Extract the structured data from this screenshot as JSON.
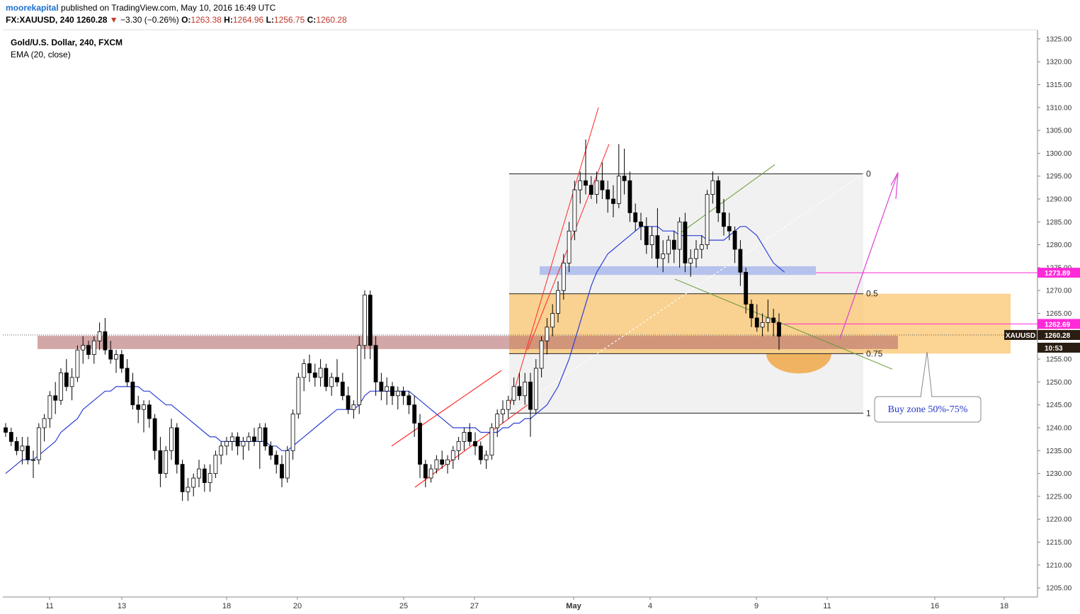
{
  "header": {
    "author": "moorekapital",
    "published": "published on TradingView.com, May 10, 2016 16:49 UTC",
    "symbol": "FX:XAUUSD, 240",
    "last": "1260.28",
    "change": "−3.30 (−0.26%)",
    "o_label": "O:",
    "o": "1263.38",
    "h_label": "H:",
    "h": "1264.96",
    "l_label": "L:",
    "l": "1256.75",
    "c_label": "C:",
    "c": "1260.28"
  },
  "legend": {
    "title": "Gold/U.S. Dollar, 240, FXCM",
    "indicator": "EMA (20, close)"
  },
  "colors": {
    "ema": "#2b3fd6",
    "fib_fill": "#eeeeee",
    "buy_zone": "#fbc56f",
    "resistance": "#b56d6d",
    "blue_zone": "#8ea4ea",
    "channel": "#ff2a2a",
    "wedge": "#6a9a35",
    "arrow": "#e040d8",
    "price_tag_magenta": "#ff29d8",
    "price_tag_dark": "#2a1e12"
  },
  "chart_data": {
    "type": "candlestick",
    "y_range": [
      1203,
      1327
    ],
    "y_ticks": [
      "1205.00",
      "1210.00",
      "1215.00",
      "1220.00",
      "1225.00",
      "1230.00",
      "1235.00",
      "1240.00",
      "1245.00",
      "1250.00",
      "1255.00",
      "1260.00",
      "1265.00",
      "1270.00",
      "1275.00",
      "1280.00",
      "1285.00",
      "1290.00",
      "1295.00",
      "1300.00",
      "1305.00",
      "1310.00",
      "1315.00",
      "1320.00",
      "1325.00"
    ],
    "x_ticks": [
      "11",
      "13",
      "18",
      "20",
      "25",
      "27",
      "May",
      "4",
      "9",
      "11",
      "16",
      "18"
    ],
    "fib_levels": [
      {
        "label": "0",
        "value": 1295.5
      },
      {
        "label": "0.5",
        "value": 1269.3
      },
      {
        "label": "0.75",
        "value": 1256.2
      },
      {
        "label": "1",
        "value": 1243.2
      }
    ],
    "buy_zone": {
      "label": "Buy zone 50%-75%",
      "from": 1256.2,
      "to": 1269.3
    },
    "resistance_zone": {
      "from": 1257.2,
      "to": 1260.1
    },
    "blue_zone": {
      "from": 1273.4,
      "to": 1275.3
    },
    "price_labels": [
      {
        "text": "1273.89",
        "value": 1273.89,
        "style": "magenta"
      },
      {
        "text": "1262.69",
        "value": 1262.69,
        "style": "magenta"
      },
      {
        "text": "1260.28",
        "value": 1260.28,
        "style": "dark",
        "symbol": "XAUUSD"
      },
      {
        "text": "10:53",
        "value": 1257.5,
        "style": "dark"
      }
    ],
    "last_price": 1260.28,
    "candles": [
      [
        1240,
        1241,
        1238,
        1239
      ],
      [
        1239,
        1240,
        1236,
        1237
      ],
      [
        1237,
        1238,
        1234,
        1235
      ],
      [
        1235,
        1238,
        1232,
        1236
      ],
      [
        1236,
        1238,
        1232,
        1233
      ],
      [
        1233,
        1235,
        1229,
        1233
      ],
      [
        1233,
        1241,
        1232,
        1240
      ],
      [
        1240,
        1243,
        1237,
        1242
      ],
      [
        1242,
        1248,
        1240,
        1247
      ],
      [
        1247,
        1250,
        1243,
        1246
      ],
      [
        1246,
        1253,
        1245,
        1252
      ],
      [
        1252,
        1255,
        1248,
        1249
      ],
      [
        1249,
        1253,
        1246,
        1251
      ],
      [
        1251,
        1258,
        1250,
        1257
      ],
      [
        1257,
        1260,
        1254,
        1258
      ],
      [
        1258,
        1259,
        1255,
        1256
      ],
      [
        1256,
        1260,
        1254,
        1259
      ],
      [
        1259,
        1263,
        1257,
        1261
      ],
      [
        1261,
        1264,
        1256,
        1257
      ],
      [
        1257,
        1259,
        1254,
        1255
      ],
      [
        1255,
        1257,
        1252,
        1256
      ],
      [
        1256,
        1257,
        1252,
        1253
      ],
      [
        1253,
        1255,
        1249,
        1250
      ],
      [
        1250,
        1252,
        1244,
        1245
      ],
      [
        1245,
        1247,
        1241,
        1244
      ],
      [
        1244,
        1246,
        1239,
        1245
      ],
      [
        1245,
        1246,
        1240,
        1242
      ],
      [
        1242,
        1243,
        1233,
        1235
      ],
      [
        1235,
        1238,
        1227,
        1230
      ],
      [
        1230,
        1236,
        1229,
        1235
      ],
      [
        1235,
        1242,
        1233,
        1240
      ],
      [
        1240,
        1241,
        1230,
        1232
      ],
      [
        1232,
        1233,
        1224,
        1226
      ],
      [
        1226,
        1229,
        1224,
        1227
      ],
      [
        1227,
        1230,
        1225,
        1229
      ],
      [
        1229,
        1233,
        1227,
        1231
      ],
      [
        1231,
        1232,
        1226,
        1228
      ],
      [
        1228,
        1232,
        1226,
        1230
      ],
      [
        1230,
        1235,
        1229,
        1234
      ],
      [
        1234,
        1237,
        1232,
        1236
      ],
      [
        1236,
        1238,
        1234,
        1237
      ],
      [
        1237,
        1239,
        1235,
        1238
      ],
      [
        1238,
        1239,
        1234,
        1236
      ],
      [
        1236,
        1238,
        1233,
        1237
      ],
      [
        1237,
        1239,
        1235,
        1238
      ],
      [
        1238,
        1240,
        1236,
        1237
      ],
      [
        1237,
        1241,
        1231,
        1240
      ],
      [
        1240,
        1241,
        1235,
        1236
      ],
      [
        1236,
        1237,
        1233,
        1234
      ],
      [
        1234,
        1235,
        1230,
        1232
      ],
      [
        1232,
        1234,
        1227,
        1229
      ],
      [
        1229,
        1236,
        1228,
        1235
      ],
      [
        1235,
        1244,
        1233,
        1243
      ],
      [
        1243,
        1252,
        1242,
        1251
      ],
      [
        1251,
        1255,
        1248,
        1254
      ],
      [
        1254,
        1256,
        1250,
        1252
      ],
      [
        1252,
        1254,
        1249,
        1251
      ],
      [
        1251,
        1255,
        1249,
        1253
      ],
      [
        1253,
        1254,
        1248,
        1249
      ],
      [
        1249,
        1252,
        1247,
        1251
      ],
      [
        1251,
        1255,
        1249,
        1250
      ],
      [
        1250,
        1252,
        1246,
        1247
      ],
      [
        1247,
        1249,
        1243,
        1244
      ],
      [
        1244,
        1246,
        1242,
        1245
      ],
      [
        1245,
        1260,
        1243,
        1258
      ],
      [
        1258,
        1270,
        1255,
        1269
      ],
      [
        1269,
        1270,
        1255,
        1258
      ],
      [
        1258,
        1260,
        1247,
        1250
      ],
      [
        1250,
        1252,
        1246,
        1248
      ],
      [
        1248,
        1251,
        1245,
        1249
      ],
      [
        1249,
        1250,
        1245,
        1247
      ],
      [
        1247,
        1249,
        1244,
        1248
      ],
      [
        1248,
        1249,
        1245,
        1247
      ],
      [
        1247,
        1248,
        1243,
        1245
      ],
      [
        1245,
        1247,
        1238,
        1241
      ],
      [
        1241,
        1243,
        1229,
        1232
      ],
      [
        1232,
        1233,
        1227,
        1229
      ],
      [
        1229,
        1232,
        1228,
        1231
      ],
      [
        1231,
        1234,
        1230,
        1233
      ],
      [
        1233,
        1235,
        1231,
        1232
      ],
      [
        1232,
        1234,
        1230,
        1233
      ],
      [
        1233,
        1236,
        1231,
        1235
      ],
      [
        1235,
        1238,
        1233,
        1237
      ],
      [
        1237,
        1240,
        1235,
        1239
      ],
      [
        1239,
        1241,
        1236,
        1237
      ],
      [
        1237,
        1239,
        1234,
        1236
      ],
      [
        1236,
        1237,
        1232,
        1233
      ],
      [
        1233,
        1235,
        1231,
        1234
      ],
      [
        1234,
        1241,
        1233,
        1240
      ],
      [
        1240,
        1244,
        1238,
        1243
      ],
      [
        1243,
        1246,
        1241,
        1244
      ],
      [
        1244,
        1247,
        1242,
        1246
      ],
      [
        1246,
        1251,
        1245,
        1249
      ],
      [
        1249,
        1252,
        1246,
        1247
      ],
      [
        1247,
        1252,
        1245,
        1250
      ],
      [
        1250,
        1252,
        1238,
        1244
      ],
      [
        1244,
        1255,
        1243,
        1253
      ],
      [
        1253,
        1260,
        1251,
        1259
      ],
      [
        1259,
        1264,
        1256,
        1262
      ],
      [
        1262,
        1267,
        1260,
        1265
      ],
      [
        1265,
        1272,
        1263,
        1270
      ],
      [
        1270,
        1278,
        1268,
        1276
      ],
      [
        1276,
        1285,
        1274,
        1283
      ],
      [
        1283,
        1294,
        1281,
        1292
      ],
      [
        1292,
        1296,
        1289,
        1294
      ],
      [
        1294,
        1303,
        1291,
        1293
      ],
      [
        1293,
        1295,
        1290,
        1291
      ],
      [
        1291,
        1296,
        1289,
        1294
      ],
      [
        1294,
        1298,
        1290,
        1292
      ],
      [
        1292,
        1294,
        1287,
        1290
      ],
      [
        1290,
        1293,
        1286,
        1289
      ],
      [
        1289,
        1302,
        1288,
        1295
      ],
      [
        1295,
        1301,
        1291,
        1294
      ],
      [
        1294,
        1296,
        1285,
        1287
      ],
      [
        1287,
        1289,
        1283,
        1285
      ],
      [
        1285,
        1287,
        1281,
        1284
      ],
      [
        1284,
        1286,
        1278,
        1280
      ],
      [
        1280,
        1284,
        1277,
        1282
      ],
      [
        1282,
        1288,
        1275,
        1277
      ],
      [
        1277,
        1281,
        1274,
        1278
      ],
      [
        1278,
        1282,
        1276,
        1281
      ],
      [
        1281,
        1283,
        1276,
        1279
      ],
      [
        1279,
        1286,
        1275,
        1285
      ],
      [
        1285,
        1287,
        1274,
        1276
      ],
      [
        1276,
        1279,
        1273,
        1277
      ],
      [
        1277,
        1281,
        1275,
        1279
      ],
      [
        1279,
        1282,
        1277,
        1280
      ],
      [
        1280,
        1292,
        1279,
        1291
      ],
      [
        1291,
        1296,
        1289,
        1294
      ],
      [
        1294,
        1295,
        1285,
        1287
      ],
      [
        1287,
        1290,
        1282,
        1284
      ],
      [
        1284,
        1287,
        1281,
        1283
      ],
      [
        1283,
        1284,
        1276,
        1279
      ],
      [
        1279,
        1281,
        1271,
        1274
      ],
      [
        1274,
        1275,
        1265,
        1267
      ],
      [
        1267,
        1268,
        1262,
        1264
      ],
      [
        1264,
        1267,
        1261,
        1262
      ],
      [
        1262,
        1265,
        1260,
        1263
      ],
      [
        1263,
        1268,
        1261,
        1264
      ],
      [
        1264,
        1266,
        1260,
        1263
      ],
      [
        1263,
        1265,
        1257,
        1260
      ]
    ],
    "ema": [
      1230,
      1231,
      1232,
      1233,
      1233,
      1233,
      1234,
      1235,
      1236,
      1237,
      1239,
      1240,
      1241,
      1242,
      1244,
      1245,
      1246,
      1247,
      1248,
      1248,
      1249,
      1249,
      1249,
      1249,
      1249,
      1248,
      1248,
      1247,
      1246,
      1245,
      1245,
      1244,
      1243,
      1242,
      1241,
      1240,
      1239,
      1238,
      1238,
      1237,
      1237,
      1237,
      1237,
      1237,
      1237,
      1237,
      1237,
      1237,
      1236,
      1236,
      1235,
      1235,
      1236,
      1237,
      1238,
      1239,
      1240,
      1241,
      1242,
      1243,
      1244,
      1244,
      1244,
      1244,
      1245,
      1247,
      1248,
      1248,
      1248,
      1248,
      1248,
      1248,
      1248,
      1248,
      1247,
      1246,
      1245,
      1244,
      1243,
      1242,
      1241,
      1240,
      1240,
      1240,
      1240,
      1240,
      1239,
      1239,
      1239,
      1239,
      1240,
      1240,
      1241,
      1241,
      1242,
      1242,
      1243,
      1244,
      1245,
      1247,
      1249,
      1252,
      1255,
      1259,
      1263,
      1267,
      1271,
      1274,
      1276,
      1278,
      1279,
      1280,
      1281,
      1282,
      1283,
      1284,
      1284,
      1284,
      1284,
      1283,
      1283,
      1283,
      1282,
      1282,
      1282,
      1282,
      1282,
      1281,
      1281,
      1281,
      1281,
      1282,
      1283,
      1284,
      1284,
      1283,
      1282,
      1280,
      1278,
      1276,
      1275,
      1274
    ]
  }
}
